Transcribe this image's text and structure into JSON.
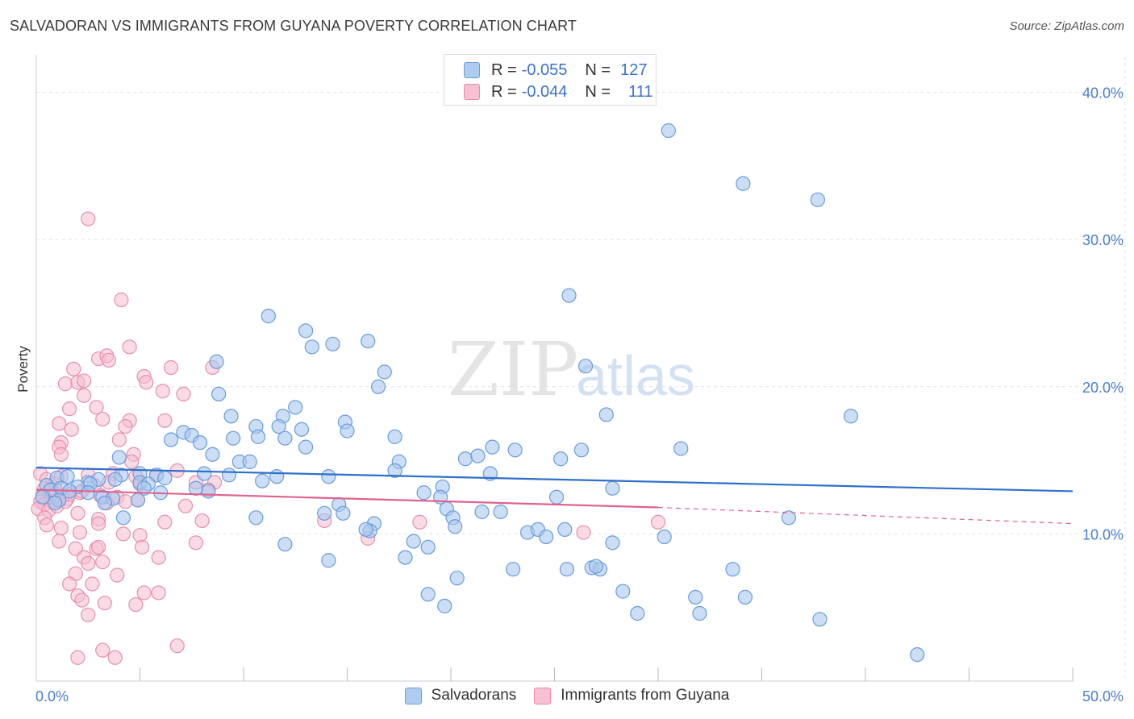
{
  "title": "SALVADORAN VS IMMIGRANTS FROM GUYANA POVERTY CORRELATION CHART",
  "source": "Source: ZipAtlas.com",
  "watermark": {
    "zip": "ZIP",
    "atlas": "atlas"
  },
  "legend": {
    "r_label": "R =",
    "n_label": "N =",
    "series": [
      {
        "name": "Salvadorans",
        "r": "-0.055",
        "n": "127",
        "fill": "#aecbf0",
        "stroke": "#6f9fdc"
      },
      {
        "name": "Immigrants from Guyana",
        "r": "-0.044",
        "n": "111",
        "fill": "#f8c0d2",
        "stroke": "#e88aaa"
      }
    ]
  },
  "colors": {
    "blue_point": "#a9c8ee",
    "blue_edge": "#6a9cdc",
    "blue_line": "#2f6fcc",
    "pink_point": "#f6bcd0",
    "pink_edge": "#e690ad",
    "pink_line": "#e0638f",
    "tick_text": "#4a7ed0",
    "grid": "#e3e3e3"
  },
  "chart_data": {
    "type": "scatter",
    "title": "SALVADORAN VS IMMIGRANTS FROM GUYANA POVERTY CORRELATION CHART",
    "xlabel": "",
    "ylabel": "Poverty",
    "xlim": [
      0,
      50
    ],
    "ylim": [
      0,
      42
    ],
    "x_tick_labels": [
      {
        "value": 0,
        "label": "0.0%"
      },
      {
        "value": 50,
        "label": "50.0%"
      }
    ],
    "y_tick_labels": [
      {
        "value": 10,
        "label": "10.0%"
      },
      {
        "value": 20,
        "label": "20.0%"
      },
      {
        "value": 30,
        "label": "30.0%"
      },
      {
        "value": 40,
        "label": "40.0%"
      }
    ],
    "x_minor_ticks": [
      5,
      10,
      15,
      20,
      25,
      30,
      35,
      40,
      45,
      50
    ],
    "grid_y": [
      10,
      20,
      30,
      40
    ],
    "series": [
      {
        "name": "Salvadorans",
        "r": -0.055,
        "n": 127,
        "trend": {
          "x": [
            0,
            50
          ],
          "y": [
            14.5,
            12.9
          ],
          "dashed_from": null
        },
        "points": [
          [
            30.5,
            37.4
          ],
          [
            34.1,
            33.8
          ],
          [
            37.7,
            32.7
          ],
          [
            25.7,
            26.2
          ],
          [
            11.2,
            24.8
          ],
          [
            13.0,
            23.8
          ],
          [
            16.0,
            23.1
          ],
          [
            13.3,
            22.7
          ],
          [
            14.3,
            22.9
          ],
          [
            16.8,
            21.0
          ],
          [
            26.5,
            21.4
          ],
          [
            16.5,
            20.0
          ],
          [
            8.7,
            21.7
          ],
          [
            8.8,
            19.5
          ],
          [
            39.3,
            18.0
          ],
          [
            27.5,
            18.1
          ],
          [
            12.5,
            18.6
          ],
          [
            11.9,
            18.0
          ],
          [
            14.9,
            17.6
          ],
          [
            15.0,
            17.0
          ],
          [
            9.4,
            18.0
          ],
          [
            9.5,
            16.5
          ],
          [
            10.6,
            17.3
          ],
          [
            11.7,
            17.3
          ],
          [
            12.8,
            17.1
          ],
          [
            10.7,
            16.6
          ],
          [
            12.0,
            16.5
          ],
          [
            17.3,
            16.6
          ],
          [
            7.1,
            16.9
          ],
          [
            6.5,
            16.4
          ],
          [
            7.5,
            16.7
          ],
          [
            7.9,
            16.2
          ],
          [
            13.0,
            15.9
          ],
          [
            22.0,
            15.9
          ],
          [
            23.1,
            15.7
          ],
          [
            26.3,
            15.7
          ],
          [
            31.1,
            15.8
          ],
          [
            20.7,
            15.1
          ],
          [
            21.3,
            15.3
          ],
          [
            25.3,
            15.1
          ],
          [
            4.0,
            15.2
          ],
          [
            8.5,
            15.4
          ],
          [
            9.8,
            14.9
          ],
          [
            10.3,
            14.9
          ],
          [
            17.5,
            14.9
          ],
          [
            17.3,
            14.3
          ],
          [
            8.1,
            14.1
          ],
          [
            21.9,
            14.1
          ],
          [
            14.1,
            13.9
          ],
          [
            11.6,
            13.9
          ],
          [
            9.3,
            14.0
          ],
          [
            10.9,
            13.6
          ],
          [
            4.1,
            14.0
          ],
          [
            5.0,
            14.1
          ],
          [
            5.8,
            14.0
          ],
          [
            6.2,
            13.8
          ],
          [
            5.0,
            13.5
          ],
          [
            5.4,
            13.4
          ],
          [
            1.0,
            13.8
          ],
          [
            1.5,
            13.9
          ],
          [
            2.5,
            13.5
          ],
          [
            3.0,
            13.7
          ],
          [
            2.6,
            13.4
          ],
          [
            2.0,
            13.2
          ],
          [
            3.8,
            13.7
          ],
          [
            0.5,
            13.3
          ],
          [
            0.7,
            13.0
          ],
          [
            1.2,
            13.1
          ],
          [
            1.6,
            12.9
          ],
          [
            0.3,
            12.5
          ],
          [
            1.1,
            12.3
          ],
          [
            0.9,
            12.1
          ],
          [
            2.5,
            12.8
          ],
          [
            3.2,
            12.5
          ],
          [
            3.7,
            12.4
          ],
          [
            3.3,
            12.1
          ],
          [
            4.9,
            12.3
          ],
          [
            6.0,
            12.8
          ],
          [
            8.3,
            12.9
          ],
          [
            7.7,
            13.1
          ],
          [
            5.2,
            13.1
          ],
          [
            18.7,
            12.8
          ],
          [
            19.6,
            13.2
          ],
          [
            19.5,
            12.5
          ],
          [
            25.1,
            12.5
          ],
          [
            27.8,
            13.1
          ],
          [
            14.6,
            12.0
          ],
          [
            19.8,
            11.7
          ],
          [
            21.5,
            11.5
          ],
          [
            14.8,
            11.4
          ],
          [
            16.3,
            10.7
          ],
          [
            13.9,
            11.4
          ],
          [
            20.1,
            11.1
          ],
          [
            22.4,
            11.5
          ],
          [
            20.2,
            10.5
          ],
          [
            23.7,
            10.1
          ],
          [
            16.1,
            10.2
          ],
          [
            15.9,
            10.3
          ],
          [
            18.2,
            9.5
          ],
          [
            18.9,
            9.1
          ],
          [
            10.6,
            11.1
          ],
          [
            4.2,
            11.1
          ],
          [
            24.2,
            10.3
          ],
          [
            24.6,
            9.8
          ],
          [
            25.5,
            10.3
          ],
          [
            30.3,
            9.8
          ],
          [
            36.3,
            11.1
          ],
          [
            27.8,
            9.4
          ],
          [
            12.0,
            9.3
          ],
          [
            17.8,
            8.4
          ],
          [
            14.1,
            8.2
          ],
          [
            20.3,
            7.0
          ],
          [
            25.6,
            7.6
          ],
          [
            26.8,
            7.7
          ],
          [
            27.2,
            7.6
          ],
          [
            23.0,
            7.6
          ],
          [
            27.0,
            7.8
          ],
          [
            31.8,
            5.7
          ],
          [
            32.0,
            4.6
          ],
          [
            29.0,
            4.6
          ],
          [
            28.3,
            6.1
          ],
          [
            18.9,
            5.9
          ],
          [
            19.7,
            5.1
          ],
          [
            37.8,
            4.2
          ],
          [
            34.2,
            5.7
          ],
          [
            42.5,
            1.8
          ],
          [
            33.6,
            7.6
          ]
        ]
      },
      {
        "name": "Immigrants from Guyana",
        "r": -0.044,
        "n": 111,
        "trend": {
          "x": [
            0,
            30
          ],
          "y": [
            13.0,
            11.8
          ],
          "dashed_from": 30,
          "dashed_to": [
            50,
            10.7
          ]
        },
        "points": [
          [
            2.5,
            31.4
          ],
          [
            4.1,
            25.9
          ],
          [
            4.5,
            22.7
          ],
          [
            3.0,
            21.9
          ],
          [
            3.4,
            22.1
          ],
          [
            3.5,
            21.8
          ],
          [
            1.8,
            21.2
          ],
          [
            6.5,
            21.3
          ],
          [
            8.5,
            21.3
          ],
          [
            1.4,
            20.2
          ],
          [
            2.0,
            20.3
          ],
          [
            2.3,
            20.4
          ],
          [
            5.2,
            20.7
          ],
          [
            5.3,
            20.3
          ],
          [
            6.1,
            19.7
          ],
          [
            7.1,
            19.5
          ],
          [
            2.3,
            19.4
          ],
          [
            1.6,
            18.5
          ],
          [
            2.9,
            18.6
          ],
          [
            3.2,
            17.8
          ],
          [
            4.5,
            17.7
          ],
          [
            4.3,
            17.3
          ],
          [
            6.2,
            17.7
          ],
          [
            1.1,
            17.5
          ],
          [
            1.7,
            17.1
          ],
          [
            1.2,
            16.2
          ],
          [
            1.1,
            15.9
          ],
          [
            1.2,
            15.4
          ],
          [
            4.0,
            16.4
          ],
          [
            4.7,
            15.4
          ],
          [
            4.6,
            14.9
          ],
          [
            6.8,
            14.3
          ],
          [
            4.8,
            13.9
          ],
          [
            3.7,
            14.1
          ],
          [
            5.8,
            14.0
          ],
          [
            7.7,
            13.5
          ],
          [
            8.6,
            13.5
          ],
          [
            8.3,
            13.0
          ],
          [
            0.2,
            14.1
          ],
          [
            0.5,
            13.7
          ],
          [
            0.9,
            13.4
          ],
          [
            0.4,
            13.1
          ],
          [
            0.6,
            12.9
          ],
          [
            0.3,
            12.6
          ],
          [
            0.8,
            12.6
          ],
          [
            1.0,
            12.3
          ],
          [
            1.3,
            12.6
          ],
          [
            1.5,
            12.4
          ],
          [
            0.2,
            12.2
          ],
          [
            0.7,
            12.2
          ],
          [
            0.4,
            12.0
          ],
          [
            0.1,
            11.7
          ],
          [
            0.6,
            11.6
          ],
          [
            1.0,
            11.9
          ],
          [
            1.4,
            12.2
          ],
          [
            2.1,
            12.8
          ],
          [
            2.8,
            13.3
          ],
          [
            3.5,
            13.5
          ],
          [
            3.4,
            12.1
          ],
          [
            3.9,
            12.5
          ],
          [
            4.3,
            12.2
          ],
          [
            4.9,
            12.3
          ],
          [
            2.0,
            11.4
          ],
          [
            0.4,
            11.1
          ],
          [
            7.2,
            11.9
          ],
          [
            3.0,
            11.0
          ],
          [
            1.2,
            10.4
          ],
          [
            0.5,
            10.6
          ],
          [
            2.1,
            10.1
          ],
          [
            3.0,
            10.7
          ],
          [
            4.2,
            10.0
          ],
          [
            5.0,
            9.9
          ],
          [
            6.2,
            10.8
          ],
          [
            8.0,
            10.9
          ],
          [
            13.9,
            10.9
          ],
          [
            18.5,
            10.8
          ],
          [
            30.0,
            10.8
          ],
          [
            1.1,
            9.5
          ],
          [
            1.9,
            9.0
          ],
          [
            2.3,
            8.4
          ],
          [
            3.2,
            8.1
          ],
          [
            2.5,
            8.0
          ],
          [
            2.9,
            9.0
          ],
          [
            3.0,
            9.1
          ],
          [
            5.1,
            9.1
          ],
          [
            5.9,
            8.4
          ],
          [
            7.7,
            9.4
          ],
          [
            16.0,
            9.7
          ],
          [
            26.4,
            10.1
          ],
          [
            2.7,
            6.6
          ],
          [
            3.9,
            7.2
          ],
          [
            5.2,
            6.0
          ],
          [
            5.9,
            6.0
          ],
          [
            1.9,
            7.3
          ],
          [
            1.6,
            6.6
          ],
          [
            2.0,
            5.8
          ],
          [
            2.2,
            5.5
          ],
          [
            3.3,
            5.3
          ],
          [
            4.8,
            5.2
          ],
          [
            2.5,
            4.5
          ],
          [
            3.2,
            2.1
          ],
          [
            3.8,
            1.6
          ],
          [
            2.0,
            1.6
          ],
          [
            6.8,
            2.4
          ],
          [
            1.2,
            13.9
          ],
          [
            2.5,
            14.0
          ],
          [
            5.0,
            13.4
          ],
          [
            3.1,
            12.6
          ],
          [
            1.6,
            12.7
          ],
          [
            0.9,
            13.0
          ],
          [
            2.2,
            12.9
          ]
        ]
      }
    ]
  }
}
